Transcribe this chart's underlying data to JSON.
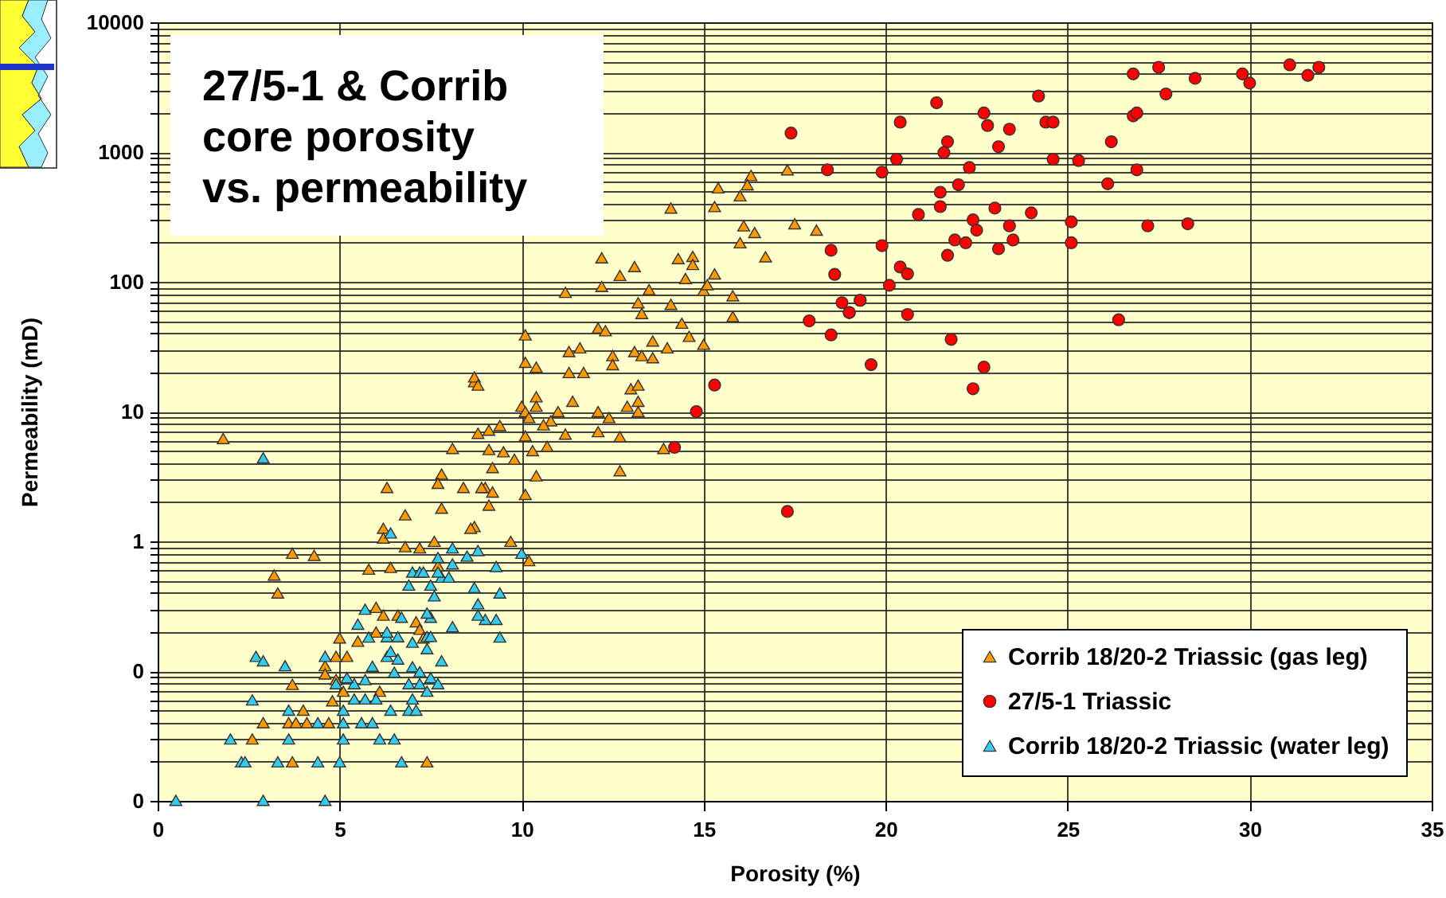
{
  "chart_data": {
    "type": "scatter",
    "title": "27/5-1 & Corrib core porosity vs. permeability",
    "xlabel": "Porosity (%)",
    "ylabel": "Permeability (mD)",
    "xlim": [
      0,
      35
    ],
    "xticks": [
      0,
      5,
      10,
      15,
      20,
      25,
      30,
      35
    ],
    "ylim": [
      0.01,
      10000
    ],
    "log": "y",
    "grid": true,
    "legend": "bottom right",
    "yticks": [
      {
        "value": 0.01,
        "label": "0"
      },
      {
        "value": 0.02,
        "label": null
      },
      {
        "value": 0.03,
        "label": null
      },
      {
        "value": 0.04,
        "label": null
      },
      {
        "value": 0.05,
        "label": null
      },
      {
        "value": 0.06,
        "label": null
      },
      {
        "value": 0.07,
        "label": null
      },
      {
        "value": 0.08,
        "label": null
      },
      {
        "value": 0.09,
        "label": null
      },
      {
        "value": 0.1,
        "label": "0"
      },
      {
        "value": 0.2,
        "label": null
      },
      {
        "value": 0.3,
        "label": null
      },
      {
        "value": 0.4,
        "label": null
      },
      {
        "value": 0.5,
        "label": null
      },
      {
        "value": 0.6,
        "label": null
      },
      {
        "value": 0.7,
        "label": null
      },
      {
        "value": 0.8,
        "label": null
      },
      {
        "value": 0.9,
        "label": null
      },
      1,
      {
        "value": 2,
        "label": null
      },
      {
        "value": 3,
        "label": null
      },
      {
        "value": 4,
        "label": null
      },
      {
        "value": 5,
        "label": null
      },
      {
        "value": 6,
        "label": null
      },
      {
        "value": 7,
        "label": null
      },
      {
        "value": 8,
        "label": null
      },
      {
        "value": 9,
        "label": null
      },
      10,
      {
        "value": 20,
        "label": null
      },
      {
        "value": 30,
        "label": null
      },
      {
        "value": 40,
        "label": null
      },
      {
        "value": 50,
        "label": null
      },
      {
        "value": 60,
        "label": null
      },
      {
        "value": 70,
        "label": null
      },
      {
        "value": 80,
        "label": null
      },
      {
        "value": 90,
        "label": null
      },
      100,
      {
        "value": 200,
        "label": null
      },
      {
        "value": 300,
        "label": null
      },
      {
        "value": 400,
        "label": null
      },
      {
        "value": 500,
        "label": null
      },
      {
        "value": 600,
        "label": null
      },
      {
        "value": 700,
        "label": null
      },
      {
        "value": 800,
        "label": null
      },
      {
        "value": 900,
        "label": null
      },
      1000,
      {
        "value": 2000,
        "label": null
      },
      {
        "value": 3000,
        "label": null
      },
      {
        "value": 4000,
        "label": null
      },
      {
        "value": 5000,
        "label": null
      },
      {
        "value": 6000,
        "label": null
      },
      {
        "value": 7000,
        "label": null
      },
      {
        "value": 8000,
        "label": null
      },
      {
        "value": 9000,
        "label": null
      },
      10000
    ],
    "series": [
      {
        "name": "Corrib 18/20-2 Triassic (gas leg)",
        "color": "#ff9900",
        "marker": "triangle",
        "x": [
          17.3,
          16.3,
          15.4,
          16.2,
          16.0,
          15.3,
          14.1,
          17.5,
          16.1,
          16.4,
          18.1,
          16.0,
          16.7,
          12.2,
          13.1,
          14.3,
          14.7,
          14.7,
          15.3,
          12.7,
          14.5,
          11.2,
          12.2,
          13.5,
          15.0,
          15.1,
          15.8,
          13.2,
          14.1,
          13.3,
          15.8,
          14.4,
          12.1,
          12.3,
          10.1,
          14.6,
          13.6,
          11.3,
          11.6,
          13.1,
          13.3,
          12.5,
          12.5,
          13.6,
          14.0,
          15.0,
          10.1,
          10.4,
          11.3,
          11.7,
          13.0,
          13.2,
          10.4,
          11.4,
          13.2,
          12.9,
          10.0,
          10.1,
          10.4,
          11.0,
          12.1,
          13.2,
          12.4,
          10.2,
          10.8,
          9.4,
          9.1,
          10.6,
          12.1,
          11.2,
          10.1,
          12.7,
          8.8,
          9.1,
          9.5,
          10.3,
          10.7,
          13.9,
          9.8,
          9.2,
          10.4,
          12.7,
          9.0,
          9.2,
          10.1,
          9.1,
          8.7,
          8.7,
          8.7,
          8.8,
          8.1,
          7.8,
          6.3,
          7.7,
          8.4,
          8.9,
          7.8,
          6.8,
          8.6,
          6.2,
          6.2,
          9.7,
          10.2,
          3.7,
          4.3,
          3.2,
          3.3,
          1.8,
          5.8,
          6.4,
          7.7,
          6.8,
          7.2,
          7.6,
          6.0,
          6.2,
          6.6,
          7.1,
          7.2,
          7.3,
          5.0,
          5.5,
          6.0,
          4.9,
          5.2,
          4.6,
          4.6,
          4.9,
          5.1,
          4.8,
          6.1,
          3.7,
          4.0,
          2.9,
          3.6,
          3.8,
          4.1,
          4.7,
          2.6,
          3.7,
          7.4
        ],
        "values": [
          730,
          660,
          530,
          560,
          460,
          380,
          370,
          280,
          270,
          240,
          250,
          200,
          156,
          153,
          131,
          151,
          157,
          136,
          115,
          112,
          106,
          83,
          92,
          87,
          86,
          95,
          78,
          69,
          67,
          57,
          54,
          48,
          44,
          42,
          39,
          38,
          35,
          29,
          31,
          29,
          27,
          27,
          23,
          26,
          31,
          33,
          24,
          22,
          20,
          20,
          15,
          16,
          13,
          12,
          12,
          11,
          11,
          10,
          11,
          10,
          10,
          10,
          9,
          9,
          8.5,
          7.8,
          7.2,
          7.9,
          7,
          6.7,
          6.5,
          6.4,
          6.8,
          5.1,
          4.9,
          5,
          5.4,
          5.2,
          4.3,
          3.7,
          3.2,
          3.5,
          2.6,
          2.4,
          2.3,
          1.9,
          17,
          1.3,
          18.5,
          16,
          5.2,
          3.3,
          2.6,
          2.8,
          2.6,
          2.6,
          1.8,
          1.6,
          1.26,
          1.26,
          1.06,
          1,
          0.71,
          0.81,
          0.78,
          0.55,
          0.4,
          6.2,
          0.61,
          0.63,
          0.65,
          0.91,
          0.89,
          1,
          0.31,
          0.27,
          0.27,
          0.24,
          0.21,
          0.18,
          0.18,
          0.17,
          0.2,
          0.13,
          0.13,
          0.11,
          0.095,
          0.086,
          0.07,
          0.059,
          0.07,
          0.079,
          0.05,
          0.04,
          0.04,
          0.04,
          0.04,
          0.04,
          0.03,
          0.02,
          0.02
        ]
      },
      {
        "name": "27/5-1 Triassic",
        "color": "#ff0000",
        "marker": "circle",
        "x": [
          21.4,
          20.4,
          24.2,
          22.7,
          22.8,
          23.4,
          24.4,
          24.6,
          21.7,
          21.6,
          20.3,
          23.1,
          19.9,
          22.3,
          24.6,
          25.3,
          26.2,
          26.9,
          26.1,
          26.8,
          27.5,
          28.5,
          27.7,
          26.8,
          26.9,
          29.8,
          30.0,
          31.1,
          31.6,
          31.9,
          22.0,
          21.5,
          21.5,
          20.9,
          22.4,
          23.0,
          24.0,
          22.5,
          23.4,
          23.5,
          21.9,
          22.2,
          23.1,
          21.7,
          19.9,
          25.1,
          25.1,
          27.2,
          28.3,
          20.4,
          20.6,
          20.1,
          19.3,
          19.0,
          20.6,
          26.4,
          21.8,
          19.6,
          22.7,
          22.4,
          18.4,
          18.5,
          18.6,
          18.8,
          19.3,
          19.0,
          17.9,
          18.5,
          15.3,
          14.8,
          14.2,
          17.3,
          17.4
        ],
        "values": [
          2400,
          1700,
          2700,
          2000,
          1600,
          1500,
          1700,
          1700,
          1200,
          990,
          880,
          1100,
          700,
          760,
          880,
          860,
          1200,
          730,
          570,
          4000,
          4500,
          3700,
          2800,
          1900,
          2000,
          4000,
          3400,
          4700,
          3900,
          4500,
          560,
          490,
          380,
          330,
          300,
          370,
          340,
          250,
          270,
          210,
          210,
          200,
          180,
          160,
          190,
          290,
          200,
          270,
          280,
          130,
          115,
          94,
          72,
          58,
          56,
          51,
          36,
          23,
          22,
          15,
          730,
          175,
          114,
          69,
          72,
          58,
          50,
          39,
          16,
          10,
          5.3,
          1.7,
          1400
        ]
      },
      {
        "name": "Corrib 18/20-2 Triassic (water leg)",
        "color": "#33ccee",
        "marker": "triangle",
        "x": [
          0.5,
          2.9,
          4.6,
          2.9,
          2.7,
          2.9,
          3.5,
          2.6,
          3.6,
          2.0,
          3.6,
          2.3,
          2.4,
          3.3,
          4.4,
          5.0,
          6.7,
          5.1,
          6.1,
          6.5,
          4.4,
          5.1,
          5.6,
          5.9,
          5.1,
          6.4,
          6.9,
          7.1,
          7.0,
          5.4,
          5.7,
          6.0,
          4.9,
          5.4,
          5.7,
          5.2,
          6.9,
          7.2,
          7.4,
          7.5,
          7.7,
          5.9,
          6.5,
          7.0,
          7.2,
          4.6,
          6.3,
          6.6,
          7.8,
          6.4,
          7.4,
          7.4,
          7.5,
          6.3,
          6.6,
          7.0,
          5.8,
          9.4,
          7.5,
          8.1,
          7.4,
          6.7,
          5.5,
          5.7,
          6.3,
          9.0,
          9.3,
          8.8,
          8.7,
          8.8,
          9.4,
          6.9,
          7.5,
          7.6,
          7.8,
          8.0,
          7.0,
          7.2,
          7.7,
          8.1,
          8.5,
          8.8,
          8.1,
          9.3,
          10.0,
          7.7,
          7.3,
          6.4
        ],
        "values": [
          0.0101,
          0.0101,
          0.0101,
          4.4,
          0.13,
          0.12,
          0.11,
          0.06,
          0.05,
          0.03,
          0.03,
          0.02,
          0.02,
          0.02,
          0.02,
          0.02,
          0.02,
          0.03,
          0.03,
          0.03,
          0.04,
          0.04,
          0.04,
          0.04,
          0.05,
          0.05,
          0.05,
          0.05,
          0.061,
          0.061,
          0.061,
          0.061,
          0.08,
          0.08,
          0.086,
          0.089,
          0.08,
          0.08,
          0.07,
          0.089,
          0.08,
          0.109,
          0.098,
          0.108,
          0.099,
          0.13,
          0.13,
          0.124,
          0.12,
          0.142,
          0.149,
          0.185,
          0.185,
          0.184,
          0.184,
          0.167,
          0.183,
          0.183,
          0.26,
          0.22,
          0.28,
          0.26,
          0.23,
          0.3,
          0.2,
          0.25,
          0.25,
          0.27,
          0.44,
          0.33,
          0.4,
          0.46,
          0.46,
          0.38,
          0.53,
          0.53,
          0.58,
          0.58,
          0.58,
          0.67,
          0.77,
          0.85,
          0.89,
          0.64,
          0.81,
          0.75,
          0.58,
          1.16
        ]
      }
    ]
  }
}
